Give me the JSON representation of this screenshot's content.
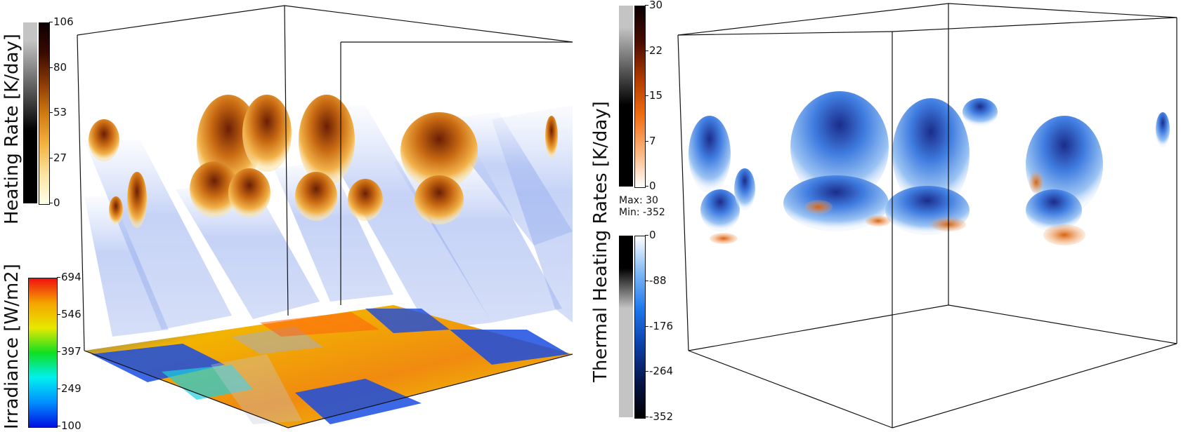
{
  "left_panel": {
    "heating_legend": {
      "title": "Heating Rate [K/day]",
      "ticks": [
        "106",
        "80",
        "53",
        "27",
        "0"
      ],
      "colors": [
        "#0c0000",
        "#3a0a00",
        "#8a3a06",
        "#d07a10",
        "#f3b23e",
        "#fbe3a0",
        "#ffffe9"
      ]
    },
    "irradiance_legend": {
      "title": "Irradiance [W/m2]",
      "ticks": [
        "694",
        "546",
        "397",
        "249",
        "100"
      ],
      "colors": [
        "#f01010",
        "#f5a400",
        "#e8e800",
        "#10e020",
        "#00f0f0",
        "#0090ff",
        "#0010e0"
      ]
    }
  },
  "right_panel": {
    "positive_legend": {
      "title": "Thermal Heating Rates [K/day]",
      "ticks": [
        "30",
        "22",
        "15",
        "7",
        "0"
      ],
      "colors": [
        "#0a0000",
        "#4a0b00",
        "#b03b00",
        "#f06d10",
        "#fbb27a",
        "#ffffff"
      ]
    },
    "range_max": "Max: 30",
    "range_min": "Min: -352",
    "negative_legend": {
      "ticks": [
        "0",
        "-88",
        "-176",
        "-264",
        "-352"
      ],
      "colors": [
        "#ffffff",
        "#7fb8f5",
        "#1c78ee",
        "#0b3fa8",
        "#06154a",
        "#000000"
      ]
    }
  }
}
